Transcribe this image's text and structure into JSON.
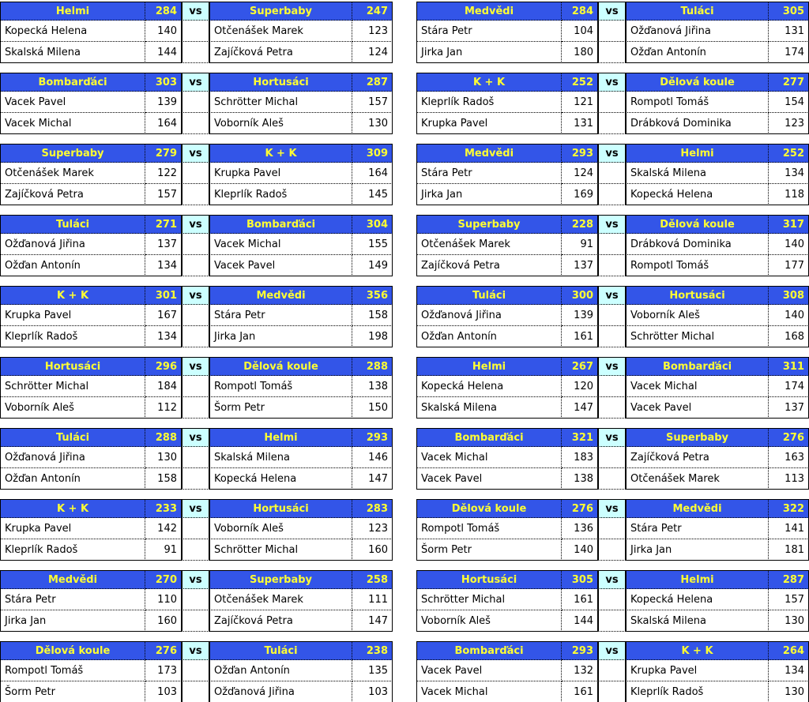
{
  "colors": {
    "header_blue": "#3355E8",
    "team_yellow": "#FFFF33",
    "vs_cyan": "#CCFFFF",
    "border_black": "#000000",
    "page_bg": "#FFFFFF"
  },
  "vs_label": "vs",
  "columns": [
    {
      "matches": [
        {
          "home": {
            "team": "Helmi",
            "score": "284",
            "players": [
              {
                "name": "Kopecká Helena",
                "score": "140"
              },
              {
                "name": "Skalská Milena",
                "score": "144"
              }
            ]
          },
          "away": {
            "team": "Superbaby",
            "score": "247",
            "players": [
              {
                "name": "Otčenášek Marek",
                "score": "123"
              },
              {
                "name": "Zajíčková Petra",
                "score": "124"
              }
            ]
          }
        },
        {
          "home": {
            "team": "Bombarďáci",
            "score": "303",
            "players": [
              {
                "name": "Vacek Pavel",
                "score": "139"
              },
              {
                "name": "Vacek Michal",
                "score": "164"
              }
            ]
          },
          "away": {
            "team": "Hortusáci",
            "score": "287",
            "players": [
              {
                "name": "Schrötter Michal",
                "score": "157"
              },
              {
                "name": "Voborník Aleš",
                "score": "130"
              }
            ]
          }
        },
        {
          "home": {
            "team": "Superbaby",
            "score": "279",
            "players": [
              {
                "name": "Otčenášek Marek",
                "score": "122"
              },
              {
                "name": "Zajíčková Petra",
                "score": "157"
              }
            ]
          },
          "away": {
            "team": "K + K",
            "score": "309",
            "players": [
              {
                "name": "Krupka Pavel",
                "score": "164"
              },
              {
                "name": "Kleprlík Radoš",
                "score": "145"
              }
            ]
          }
        },
        {
          "home": {
            "team": "Tuláci",
            "score": "271",
            "players": [
              {
                "name": "Ožďanová Jiřina",
                "score": "137"
              },
              {
                "name": "Ožďan Antonín",
                "score": "134"
              }
            ]
          },
          "away": {
            "team": "Bombarďáci",
            "score": "304",
            "players": [
              {
                "name": "Vacek Michal",
                "score": "155"
              },
              {
                "name": "Vacek Pavel",
                "score": "149"
              }
            ]
          }
        },
        {
          "home": {
            "team": "K + K",
            "score": "301",
            "players": [
              {
                "name": "Krupka Pavel",
                "score": "167"
              },
              {
                "name": "Kleprlík Radoš",
                "score": "134"
              }
            ]
          },
          "away": {
            "team": "Medvědi",
            "score": "356",
            "players": [
              {
                "name": "Stára Petr",
                "score": "158"
              },
              {
                "name": "Jirka Jan",
                "score": "198"
              }
            ]
          }
        },
        {
          "home": {
            "team": "Hortusáci",
            "score": "296",
            "players": [
              {
                "name": "Schrötter Michal",
                "score": "184"
              },
              {
                "name": "Voborník Aleš",
                "score": "112"
              }
            ]
          },
          "away": {
            "team": "Dělová koule",
            "score": "288",
            "players": [
              {
                "name": "Rompotl Tomáš",
                "score": "138"
              },
              {
                "name": "Šorm Petr",
                "score": "150"
              }
            ]
          }
        },
        {
          "home": {
            "team": "Tuláci",
            "score": "288",
            "players": [
              {
                "name": "Ožďanová Jiřina",
                "score": "130"
              },
              {
                "name": "Ožďan Antonín",
                "score": "158"
              }
            ]
          },
          "away": {
            "team": "Helmi",
            "score": "293",
            "players": [
              {
                "name": "Skalská Milena",
                "score": "146"
              },
              {
                "name": "Kopecká Helena",
                "score": "147"
              }
            ]
          }
        },
        {
          "home": {
            "team": "K + K",
            "score": "233",
            "players": [
              {
                "name": "Krupka Pavel",
                "score": "142"
              },
              {
                "name": "Kleprlík Radoš",
                "score": "91"
              }
            ]
          },
          "away": {
            "team": "Hortusáci",
            "score": "283",
            "players": [
              {
                "name": "Voborník Aleš",
                "score": "123"
              },
              {
                "name": "Schrötter Michal",
                "score": "160"
              }
            ]
          }
        },
        {
          "home": {
            "team": "Medvědi",
            "score": "270",
            "players": [
              {
                "name": "Stára Petr",
                "score": "110"
              },
              {
                "name": "Jirka Jan",
                "score": "160"
              }
            ]
          },
          "away": {
            "team": "Superbaby",
            "score": "258",
            "players": [
              {
                "name": "Otčenášek Marek",
                "score": "111"
              },
              {
                "name": "Zajíčková Petra",
                "score": "147"
              }
            ]
          }
        },
        {
          "home": {
            "team": "Dělová koule",
            "score": "276",
            "players": [
              {
                "name": "Rompotl Tomáš",
                "score": "173"
              },
              {
                "name": "Šorm Petr",
                "score": "103"
              }
            ]
          },
          "away": {
            "team": "Tuláci",
            "score": "238",
            "players": [
              {
                "name": "Ožďan Antonín",
                "score": "135"
              },
              {
                "name": "Ožďanová Jiřina",
                "score": "103"
              }
            ]
          }
        }
      ]
    },
    {
      "matches": [
        {
          "home": {
            "team": "Medvědi",
            "score": "284",
            "players": [
              {
                "name": "Stára Petr",
                "score": "104"
              },
              {
                "name": "Jirka Jan",
                "score": "180"
              }
            ]
          },
          "away": {
            "team": "Tuláci",
            "score": "305",
            "players": [
              {
                "name": "Ožďanová Jiřina",
                "score": "131"
              },
              {
                "name": "Ožďan Antonín",
                "score": "174"
              }
            ]
          }
        },
        {
          "home": {
            "team": "K + K",
            "score": "252",
            "players": [
              {
                "name": "Kleprlík Radoš",
                "score": "121"
              },
              {
                "name": "Krupka Pavel",
                "score": "131"
              }
            ]
          },
          "away": {
            "team": "Dělová koule",
            "score": "277",
            "players": [
              {
                "name": "Rompotl Tomáš",
                "score": "154"
              },
              {
                "name": "Drábková Dominika",
                "score": "123"
              }
            ]
          }
        },
        {
          "home": {
            "team": "Medvědi",
            "score": "293",
            "players": [
              {
                "name": "Stára Petr",
                "score": "124"
              },
              {
                "name": "Jirka Jan",
                "score": "169"
              }
            ]
          },
          "away": {
            "team": "Helmi",
            "score": "252",
            "players": [
              {
                "name": "Skalská Milena",
                "score": "134"
              },
              {
                "name": "Kopecká Helena",
                "score": "118"
              }
            ]
          }
        },
        {
          "home": {
            "team": "Superbaby",
            "score": "228",
            "players": [
              {
                "name": "Otčenášek Marek",
                "score": "91"
              },
              {
                "name": "Zajíčková Petra",
                "score": "137"
              }
            ]
          },
          "away": {
            "team": "Dělová koule",
            "score": "317",
            "players": [
              {
                "name": "Drábková Dominika",
                "score": "140"
              },
              {
                "name": "Rompotl Tomáš",
                "score": "177"
              }
            ]
          }
        },
        {
          "home": {
            "team": "Tuláci",
            "score": "300",
            "players": [
              {
                "name": "Ožďanová Jiřina",
                "score": "139"
              },
              {
                "name": "Ožďan Antonín",
                "score": "161"
              }
            ]
          },
          "away": {
            "team": "Hortusáci",
            "score": "308",
            "players": [
              {
                "name": "Voborník Aleš",
                "score": "140"
              },
              {
                "name": "Schrötter Michal",
                "score": "168"
              }
            ]
          }
        },
        {
          "home": {
            "team": "Helmi",
            "score": "267",
            "players": [
              {
                "name": "Kopecká Helena",
                "score": "120"
              },
              {
                "name": "Skalská Milena",
                "score": "147"
              }
            ]
          },
          "away": {
            "team": "Bombarďáci",
            "score": "311",
            "players": [
              {
                "name": "Vacek Michal",
                "score": "174"
              },
              {
                "name": "Vacek Pavel",
                "score": "137"
              }
            ]
          }
        },
        {
          "home": {
            "team": "Bombarďáci",
            "score": "321",
            "players": [
              {
                "name": "Vacek Michal",
                "score": "183"
              },
              {
                "name": "Vacek Pavel",
                "score": "138"
              }
            ]
          },
          "away": {
            "team": "Superbaby",
            "score": "276",
            "players": [
              {
                "name": "Zajíčková Petra",
                "score": "163"
              },
              {
                "name": "Otčenášek Marek",
                "score": "113"
              }
            ]
          }
        },
        {
          "home": {
            "team": "Dělová koule",
            "score": "276",
            "players": [
              {
                "name": "Rompotl Tomáš",
                "score": "136"
              },
              {
                "name": "Šorm Petr",
                "score": "140"
              }
            ]
          },
          "away": {
            "team": "Medvědi",
            "score": "322",
            "players": [
              {
                "name": "Stára Petr",
                "score": "141"
              },
              {
                "name": "Jirka Jan",
                "score": "181"
              }
            ]
          }
        },
        {
          "home": {
            "team": "Hortusáci",
            "score": "305",
            "players": [
              {
                "name": "Schrötter Michal",
                "score": "161"
              },
              {
                "name": "Voborník Aleš",
                "score": "144"
              }
            ]
          },
          "away": {
            "team": "Helmi",
            "score": "287",
            "players": [
              {
                "name": "Kopecká Helena",
                "score": "157"
              },
              {
                "name": "Skalská Milena",
                "score": "130"
              }
            ]
          }
        },
        {
          "home": {
            "team": "Bombarďáci",
            "score": "293",
            "players": [
              {
                "name": "Vacek Pavel",
                "score": "132"
              },
              {
                "name": "Vacek Michal",
                "score": "161"
              }
            ]
          },
          "away": {
            "team": "K + K",
            "score": "264",
            "players": [
              {
                "name": "Krupka Pavel",
                "score": "134"
              },
              {
                "name": "Kleprlík Radoš",
                "score": "130"
              }
            ]
          }
        }
      ]
    }
  ]
}
